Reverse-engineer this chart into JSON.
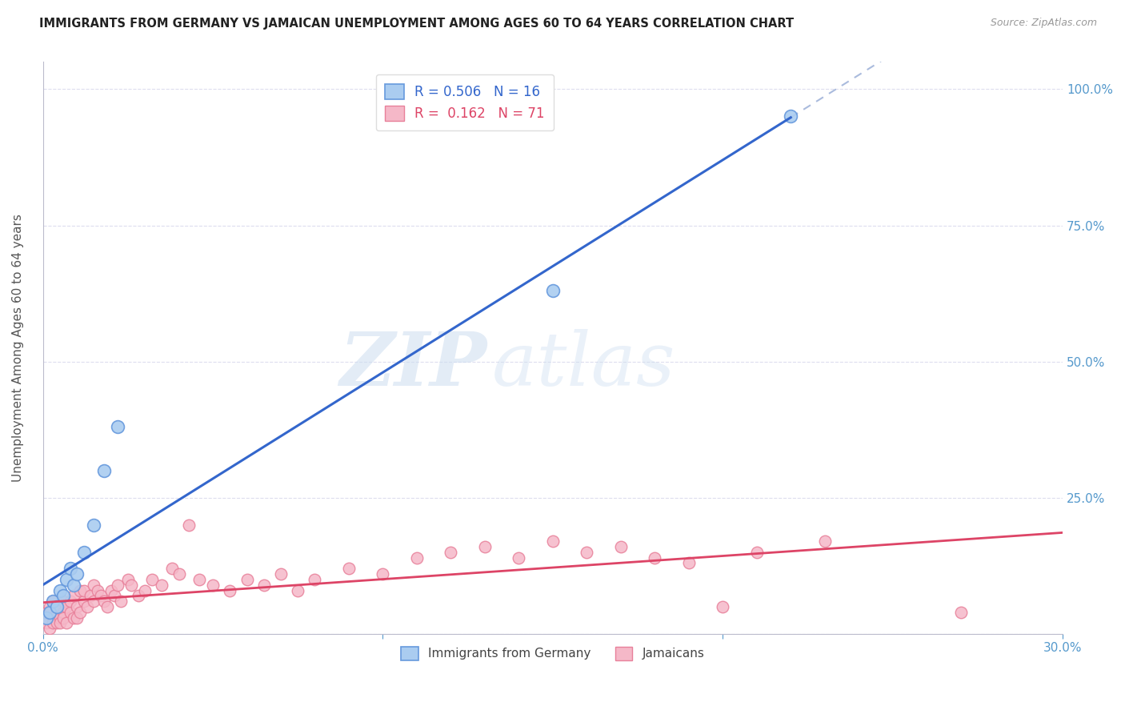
{
  "title": "IMMIGRANTS FROM GERMANY VS JAMAICAN UNEMPLOYMENT AMONG AGES 60 TO 64 YEARS CORRELATION CHART",
  "source": "Source: ZipAtlas.com",
  "ylabel": "Unemployment Among Ages 60 to 64 years",
  "xlim": [
    0.0,
    0.3
  ],
  "ylim": [
    0.0,
    1.05
  ],
  "xticks": [
    0.0,
    0.1,
    0.2,
    0.3
  ],
  "xticklabels": [
    "0.0%",
    "",
    "",
    "30.0%"
  ],
  "yticks": [
    0.0,
    0.25,
    0.5,
    0.75,
    1.0
  ],
  "yticklabels": [
    "",
    "25.0%",
    "50.0%",
    "75.0%",
    "100.0%"
  ],
  "germany_color": "#aaccf0",
  "jamaica_color": "#f5b8c8",
  "germany_edge": "#6699dd",
  "jamaica_edge": "#e8809a",
  "trend_germany_color": "#3366cc",
  "trend_jamaica_color": "#dd4466",
  "dashed_color": "#aabbdd",
  "legend_label_germany": "Immigrants from Germany",
  "legend_label_jamaica": "Jamaicans",
  "r_germany": 0.506,
  "n_germany": 16,
  "r_jamaica": 0.162,
  "n_jamaica": 71,
  "germany_x": [
    0.001,
    0.002,
    0.003,
    0.004,
    0.005,
    0.006,
    0.007,
    0.008,
    0.009,
    0.01,
    0.012,
    0.015,
    0.018,
    0.022,
    0.15,
    0.22
  ],
  "germany_y": [
    0.03,
    0.04,
    0.06,
    0.05,
    0.08,
    0.07,
    0.1,
    0.12,
    0.09,
    0.11,
    0.15,
    0.2,
    0.3,
    0.38,
    0.63,
    0.95
  ],
  "jamaica_x": [
    0.001,
    0.001,
    0.002,
    0.002,
    0.003,
    0.003,
    0.003,
    0.004,
    0.004,
    0.005,
    0.005,
    0.005,
    0.006,
    0.006,
    0.006,
    0.007,
    0.007,
    0.008,
    0.008,
    0.009,
    0.009,
    0.01,
    0.01,
    0.011,
    0.011,
    0.012,
    0.012,
    0.013,
    0.014,
    0.015,
    0.015,
    0.016,
    0.017,
    0.018,
    0.019,
    0.02,
    0.021,
    0.022,
    0.023,
    0.025,
    0.026,
    0.028,
    0.03,
    0.032,
    0.035,
    0.038,
    0.04,
    0.043,
    0.046,
    0.05,
    0.055,
    0.06,
    0.065,
    0.07,
    0.075,
    0.08,
    0.09,
    0.1,
    0.11,
    0.12,
    0.13,
    0.14,
    0.15,
    0.16,
    0.17,
    0.18,
    0.19,
    0.2,
    0.21,
    0.23,
    0.27
  ],
  "jamaica_y": [
    0.02,
    0.04,
    0.01,
    0.05,
    0.03,
    0.06,
    0.02,
    0.04,
    0.02,
    0.05,
    0.03,
    0.02,
    0.04,
    0.06,
    0.03,
    0.05,
    0.02,
    0.04,
    0.06,
    0.03,
    0.07,
    0.05,
    0.03,
    0.08,
    0.04,
    0.06,
    0.08,
    0.05,
    0.07,
    0.09,
    0.06,
    0.08,
    0.07,
    0.06,
    0.05,
    0.08,
    0.07,
    0.09,
    0.06,
    0.1,
    0.09,
    0.07,
    0.08,
    0.1,
    0.09,
    0.12,
    0.11,
    0.2,
    0.1,
    0.09,
    0.08,
    0.1,
    0.09,
    0.11,
    0.08,
    0.1,
    0.12,
    0.11,
    0.14,
    0.15,
    0.16,
    0.14,
    0.17,
    0.15,
    0.16,
    0.14,
    0.13,
    0.05,
    0.15,
    0.17,
    0.04
  ],
  "watermark_zip": "ZIP",
  "watermark_atlas": "atlas",
  "background_color": "#ffffff",
  "grid_color": "#ddddee",
  "axis_color": "#bbbbcc",
  "tick_label_color": "#5599cc",
  "ylabel_color": "#555555"
}
